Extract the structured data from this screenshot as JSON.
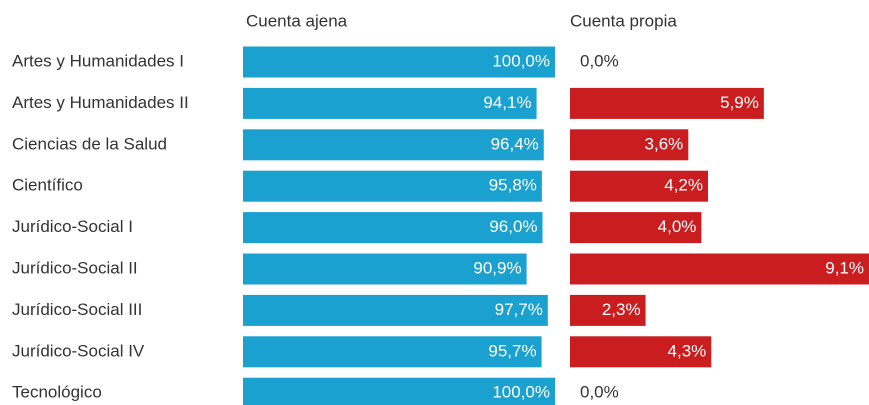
{
  "chart_data": {
    "type": "bar",
    "categories": [
      "Artes y Humanidades I",
      "Artes y Humanidades II",
      "Ciencias de la Salud",
      "Científico",
      "Jurídico-Social I",
      "Jurídico-Social II",
      "Jurídico-Social III",
      "Jurídico-Social IV",
      "Tecnológico"
    ],
    "series": [
      {
        "name": "Cuenta ajena",
        "color": "#1aa1cf",
        "values": [
          100.0,
          94.1,
          96.4,
          95.8,
          96.0,
          90.9,
          97.7,
          95.7,
          100.0
        ],
        "value_labels": [
          "100,0%",
          "94,1%",
          "96,4%",
          "95,8%",
          "96,0%",
          "90,9%",
          "97,7%",
          "95,7%",
          "100,0%"
        ]
      },
      {
        "name": "Cuenta propia",
        "color": "#c91d1f",
        "values": [
          0.0,
          5.9,
          3.6,
          4.2,
          4.0,
          9.1,
          2.3,
          4.3,
          0.0
        ],
        "value_labels": [
          "0,0%",
          "5,9%",
          "3,6%",
          "4,2%",
          "4,0%",
          "9,1%",
          "2,3%",
          "4,3%",
          "0,0%"
        ]
      }
    ]
  }
}
